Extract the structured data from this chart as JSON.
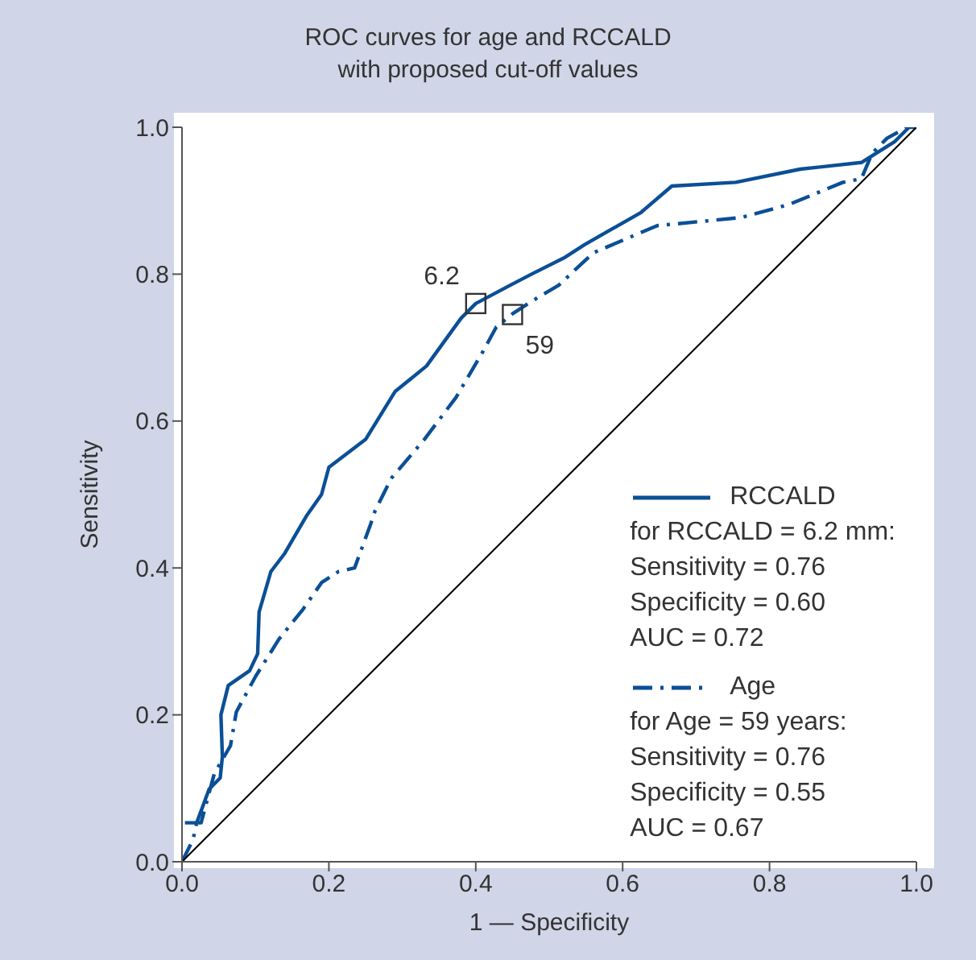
{
  "chart_data": {
    "type": "line",
    "title": "ROC curves for age and RCCALD\nwith proposed cut-off values",
    "xlabel": "1 — Specificity",
    "ylabel": "Sensitivity",
    "xlim": [
      0,
      1
    ],
    "ylim": [
      0,
      1
    ],
    "xticks": [
      {
        "value": 0,
        "label": "0.0"
      },
      0.2,
      0.4,
      0.6,
      0.8,
      {
        "value": 1,
        "label": "1.0"
      }
    ],
    "yticks": [
      {
        "value": 0,
        "label": "0.0"
      },
      0.2,
      0.4,
      0.6,
      0.8,
      {
        "value": 1,
        "label": "1.0"
      }
    ],
    "legend": "bottom right",
    "marker": "none",
    "series": [
      {
        "name": "RCCALD",
        "color": "#0b4f96",
        "line_style": "solid",
        "x": [
          0.004,
          0.02,
          0.037,
          0.052,
          0.055,
          0.053,
          0.063,
          0.092,
          0.103,
          0.105,
          0.121,
          0.14,
          0.169,
          0.19,
          0.2,
          0.25,
          0.29,
          0.333,
          0.38,
          0.4,
          0.447,
          0.476,
          0.52,
          0.548,
          0.625,
          0.667,
          0.754,
          0.842,
          0.925,
          0.97,
          0.99,
          1
        ],
        "values": [
          0.053,
          0.053,
          0.099,
          0.114,
          0.143,
          0.2,
          0.24,
          0.26,
          0.283,
          0.34,
          0.395,
          0.42,
          0.47,
          0.5,
          0.537,
          0.575,
          0.64,
          0.675,
          0.74,
          0.76,
          0.785,
          0.8,
          0.822,
          0.84,
          0.884,
          0.92,
          0.925,
          0.943,
          0.952,
          0.98,
          1,
          1
        ]
      },
      {
        "name": "Age",
        "color": "#0b4f96",
        "line_style": "dashed",
        "x": [
          0,
          0.015,
          0.02,
          0.026,
          0.044,
          0.066,
          0.074,
          0.1,
          0.132,
          0.165,
          0.19,
          0.213,
          0.235,
          0.257,
          0.263,
          0.285,
          0.33,
          0.373,
          0.41,
          0.428,
          0.45,
          0.476,
          0.513,
          0.56,
          0.647,
          0.761,
          0.827,
          0.9,
          0.925,
          0.94,
          0.96,
          0.987,
          1
        ],
        "values": [
          0,
          0.03,
          0.053,
          0.053,
          0.12,
          0.158,
          0.204,
          0.252,
          0.303,
          0.344,
          0.38,
          0.395,
          0.4,
          0.46,
          0.478,
          0.522,
          0.575,
          0.632,
          0.695,
          0.728,
          0.746,
          0.763,
          0.785,
          0.829,
          0.866,
          0.877,
          0.895,
          0.925,
          0.93,
          0.965,
          0.985,
          1,
          1
        ]
      },
      {
        "type": "line",
        "color": "#000000",
        "line_style": "solid",
        "x": [
          0,
          1
        ],
        "values": [
          0,
          1
        ]
      }
    ],
    "annotations": [
      {
        "text": "6.2",
        "x": 0.4,
        "y": 0.76
      },
      {
        "text": "59",
        "x": 0.45,
        "y": 0.745
      },
      "for RCCALD = 6.2 mm:",
      "Sensitivity = 0.76",
      "Specificity = 0.60",
      "AUC = 0.72",
      "for Age = 59 years:",
      "Sensitivity = 0.76",
      "Specificity = 0.55",
      "AUC = 0.67"
    ]
  }
}
